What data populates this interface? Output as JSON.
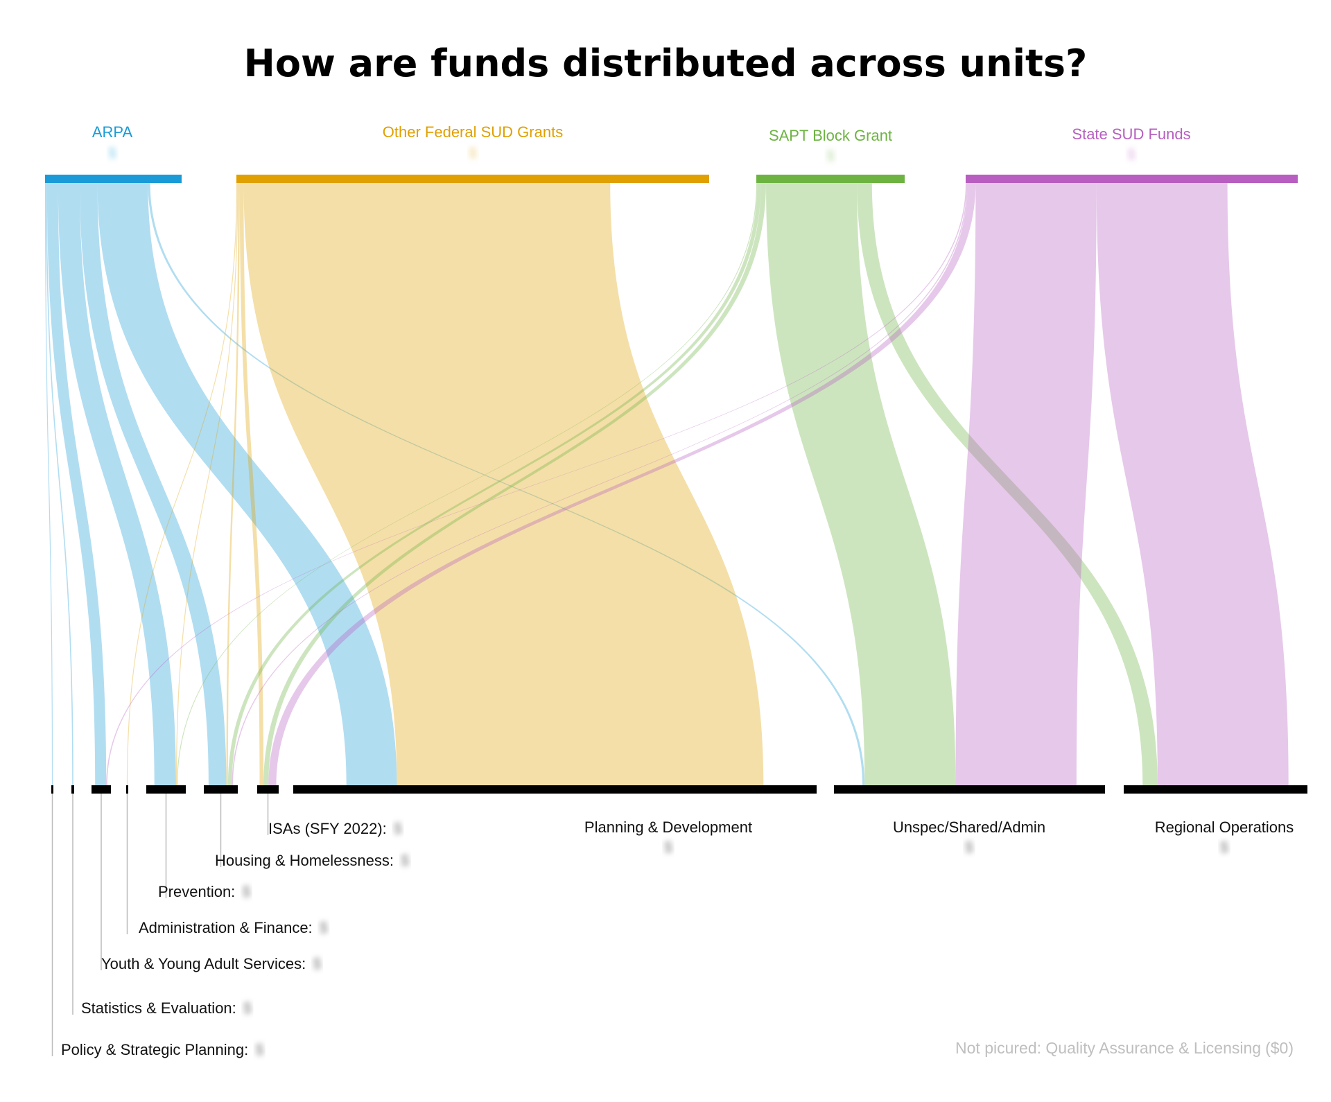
{
  "chart_data": {
    "type": "sankey",
    "title": "How are funds distributed across units?",
    "colors": {
      "ARPA": "#1a9bd7",
      "Other Federal SUD Grants": "#e0a000",
      "SAPT Block Grant": "#6db342",
      "State SUD Funds": "#b75ec0",
      "unit_bar": "#000000",
      "leader": "#bbbbbb",
      "note": "#bfbfbf"
    },
    "sources": [
      {
        "name": "ARPA",
        "amount": "$"
      },
      {
        "name": "Other Federal SUD Grants",
        "amount": "$"
      },
      {
        "name": "SAPT Block Grant",
        "amount": "$"
      },
      {
        "name": "State SUD Funds",
        "amount": "$"
      }
    ],
    "targets": [
      {
        "name": "Policy & Strategic Planning:",
        "amount": "$"
      },
      {
        "name": "Statistics & Evaluation:",
        "amount": "$"
      },
      {
        "name": "Youth & Young Adult Services:",
        "amount": "$"
      },
      {
        "name": "Administration & Finance:",
        "amount": "$"
      },
      {
        "name": "Prevention:",
        "amount": "$"
      },
      {
        "name": "Housing & Homelessness:",
        "amount": "$"
      },
      {
        "name": "ISAs (SFY 2022):",
        "amount": "$"
      },
      {
        "name": "Planning & Development",
        "amount": "$"
      },
      {
        "name": "Unspec/Shared/Admin",
        "amount": "$"
      },
      {
        "name": "Regional Operations",
        "amount": "$"
      }
    ],
    "flows": [
      {
        "source": "ARPA",
        "target": "Policy & Strategic Planning:",
        "value": 1.5
      },
      {
        "source": "ARPA",
        "target": "Statistics & Evaluation:",
        "value": 2
      },
      {
        "source": "ARPA",
        "target": "Youth & Young Adult Services:",
        "value": 20
      },
      {
        "source": "ARPA",
        "target": "Prevention:",
        "value": 39
      },
      {
        "source": "ARPA",
        "target": "Housing & Homelessness:",
        "value": 32
      },
      {
        "source": "ARPA",
        "target": "Planning & Development",
        "value": 91
      },
      {
        "source": "ARPA",
        "target": "Unspec/Shared/Admin",
        "value": 4
      },
      {
        "source": "Other Federal SUD Grants",
        "target": "Administration & Finance:",
        "value": 1.5
      },
      {
        "source": "Other Federal SUD Grants",
        "target": "Prevention:",
        "value": 1.5
      },
      {
        "source": "Other Federal SUD Grants",
        "target": "Housing & Homelessness:",
        "value": 3
      },
      {
        "source": "Other Federal SUD Grants",
        "target": "ISAs (SFY 2022):",
        "value": 7
      },
      {
        "source": "Other Federal SUD Grants",
        "target": "Planning & Development",
        "value": 661
      },
      {
        "source": "SAPT Block Grant",
        "target": "Prevention:",
        "value": 1.5
      },
      {
        "source": "SAPT Block Grant",
        "target": "Housing & Homelessness:",
        "value": 7
      },
      {
        "source": "SAPT Block Grant",
        "target": "ISAs (SFY 2022):",
        "value": 9
      },
      {
        "source": "SAPT Block Grant",
        "target": "Unspec/Shared/Admin",
        "value": 164
      },
      {
        "source": "SAPT Block Grant",
        "target": "Regional Operations",
        "value": 27
      },
      {
        "source": "State SUD Funds",
        "target": "Youth & Young Adult Services:",
        "value": 2
      },
      {
        "source": "State SUD Funds",
        "target": "Housing & Homelessness:",
        "value": 2
      },
      {
        "source": "State SUD Funds",
        "target": "ISAs (SFY 2022):",
        "value": 14
      },
      {
        "source": "State SUD Funds",
        "target": "Unspec/Shared/Admin",
        "value": 218
      },
      {
        "source": "State SUD Funds",
        "target": "Regional Operations",
        "value": 236
      }
    ],
    "note": {
      "text": "Not picured: Quality Assurance & Licensing",
      "amount": "($0)"
    }
  }
}
